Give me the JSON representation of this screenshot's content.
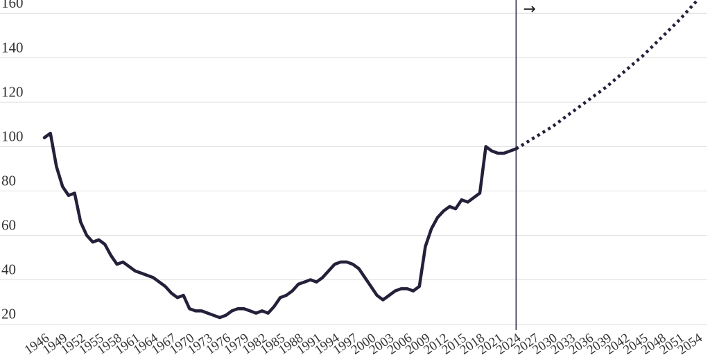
{
  "chart_data": {
    "type": "line",
    "title": "",
    "xlabel": "",
    "ylabel": "",
    "ylim": [
      18,
      166
    ],
    "xlim": [
      1946,
      2054
    ],
    "grid": true,
    "y_ticks": [
      20,
      40,
      60,
      80,
      100,
      120,
      140,
      160
    ],
    "x_ticks": [
      "1946",
      "1949",
      "1952",
      "1955",
      "1958",
      "1961",
      "1964",
      "1967",
      "1970",
      "1973",
      "1976",
      "1979",
      "1982",
      "1985",
      "1988",
      "1991",
      "1994",
      "1997",
      "2000",
      "2003",
      "2006",
      "2009",
      "2012",
      "2015",
      "2018",
      "2021",
      "2024",
      "2027",
      "2030",
      "2033",
      "2036",
      "2039",
      "2042",
      "2045",
      "2048",
      "2051",
      "2054"
    ],
    "divider_year": 2024,
    "annotation": "→",
    "colors": {
      "line": "#23213a",
      "grid": "#e3e3e3",
      "divider": "#23213a"
    },
    "series": [
      {
        "style": "solid",
        "x": [
          1946,
          1947,
          1948,
          1949,
          1950,
          1951,
          1952,
          1953,
          1954,
          1955,
          1956,
          1957,
          1958,
          1959,
          1960,
          1961,
          1962,
          1963,
          1964,
          1965,
          1966,
          1967,
          1968,
          1969,
          1970,
          1971,
          1972,
          1973,
          1974,
          1975,
          1976,
          1977,
          1978,
          1979,
          1980,
          1981,
          1982,
          1983,
          1984,
          1985,
          1986,
          1987,
          1988,
          1989,
          1990,
          1991,
          1992,
          1993,
          1994,
          1995,
          1996,
          1997,
          1998,
          1999,
          2000,
          2001,
          2002,
          2003,
          2004,
          2005,
          2006,
          2007,
          2008,
          2009,
          2010,
          2011,
          2012,
          2013,
          2014,
          2015,
          2016,
          2017,
          2018,
          2019,
          2020,
          2021,
          2022,
          2023,
          2024
        ],
        "y": [
          104,
          106,
          91,
          82,
          78,
          79,
          66,
          60,
          57,
          58,
          56,
          51,
          47,
          48,
          46,
          44,
          43,
          42,
          41,
          39,
          37,
          34,
          32,
          33,
          27,
          26,
          26,
          25,
          24,
          23,
          24,
          26,
          27,
          27,
          26,
          25,
          26,
          25,
          28,
          32,
          33,
          35,
          38,
          39,
          40,
          39,
          41,
          44,
          47,
          48,
          48,
          47,
          45,
          41,
          37,
          33,
          31,
          33,
          35,
          36,
          36,
          35,
          37,
          55,
          63,
          68,
          71,
          73,
          72,
          76,
          75,
          77,
          79,
          100,
          98,
          97,
          97,
          98,
          99
        ]
      },
      {
        "style": "dotted",
        "x": [
          2024,
          2027,
          2030,
          2033,
          2036,
          2039,
          2042,
          2045,
          2048,
          2051,
          2054
        ],
        "y": [
          99,
          104,
          109,
          115,
          121,
          127,
          134,
          141,
          149,
          157,
          166
        ]
      }
    ]
  }
}
